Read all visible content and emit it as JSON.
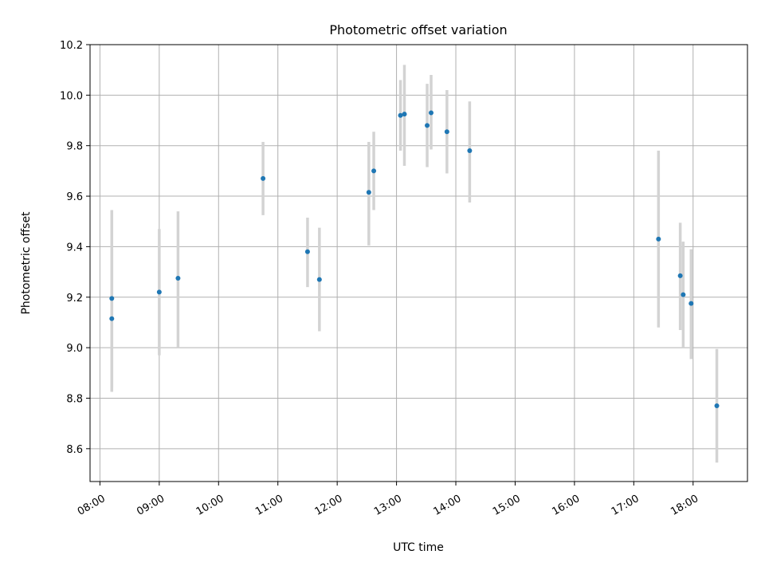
{
  "chart_data": {
    "type": "scatter",
    "title": "Photometric offset variation",
    "xlabel": "UTC time",
    "ylabel": "Photometric offset",
    "grid": true,
    "xlim": [
      "07:50",
      "18:55"
    ],
    "ylim": [
      8.47,
      10.2
    ],
    "x_ticks": [
      "08:00",
      "09:00",
      "10:00",
      "11:00",
      "12:00",
      "13:00",
      "14:00",
      "15:00",
      "16:00",
      "17:00",
      "18:00"
    ],
    "y_ticks": [
      8.6,
      8.8,
      9.0,
      9.2,
      9.4,
      9.6,
      9.8,
      10.0,
      10.2
    ],
    "y_tick_labels": [
      "8.6",
      "8.8",
      "9.0",
      "9.2",
      "9.4",
      "9.6",
      "9.8",
      "10.0",
      "10.2"
    ],
    "point_color": "#1f77b4",
    "errorbar_color": "#d3d3d3",
    "points": [
      {
        "x": "08:12",
        "y": 9.115,
        "ylow": 8.84,
        "yhigh": 9.39
      },
      {
        "x": "08:12",
        "y": 9.195,
        "ylow": 8.825,
        "yhigh": 9.545
      },
      {
        "x": "09:00",
        "y": 9.22,
        "ylow": 8.97,
        "yhigh": 9.47
      },
      {
        "x": "09:19",
        "y": 9.275,
        "ylow": 9.0,
        "yhigh": 9.54
      },
      {
        "x": "10:45",
        "y": 9.67,
        "ylow": 9.525,
        "yhigh": 9.815
      },
      {
        "x": "11:30",
        "y": 9.38,
        "ylow": 9.24,
        "yhigh": 9.515
      },
      {
        "x": "11:42",
        "y": 9.27,
        "ylow": 9.065,
        "yhigh": 9.475
      },
      {
        "x": "12:32",
        "y": 9.615,
        "ylow": 9.405,
        "yhigh": 9.815
      },
      {
        "x": "12:37",
        "y": 9.7,
        "ylow": 9.545,
        "yhigh": 9.855
      },
      {
        "x": "13:04",
        "y": 9.92,
        "ylow": 9.78,
        "yhigh": 10.06
      },
      {
        "x": "13:08",
        "y": 9.925,
        "ylow": 9.72,
        "yhigh": 10.12
      },
      {
        "x": "13:31",
        "y": 9.88,
        "ylow": 9.715,
        "yhigh": 10.045
      },
      {
        "x": "13:35",
        "y": 9.93,
        "ylow": 9.785,
        "yhigh": 10.08
      },
      {
        "x": "13:51",
        "y": 9.855,
        "ylow": 9.69,
        "yhigh": 10.02
      },
      {
        "x": "14:14",
        "y": 9.78,
        "ylow": 9.575,
        "yhigh": 9.975
      },
      {
        "x": "17:25",
        "y": 9.43,
        "ylow": 9.08,
        "yhigh": 9.78
      },
      {
        "x": "17:47",
        "y": 9.285,
        "ylow": 9.07,
        "yhigh": 9.495
      },
      {
        "x": "17:50",
        "y": 9.21,
        "ylow": 9.0,
        "yhigh": 9.42
      },
      {
        "x": "17:58",
        "y": 9.175,
        "ylow": 8.955,
        "yhigh": 9.39
      },
      {
        "x": "18:24",
        "y": 8.77,
        "ylow": 8.545,
        "yhigh": 8.995
      }
    ]
  }
}
